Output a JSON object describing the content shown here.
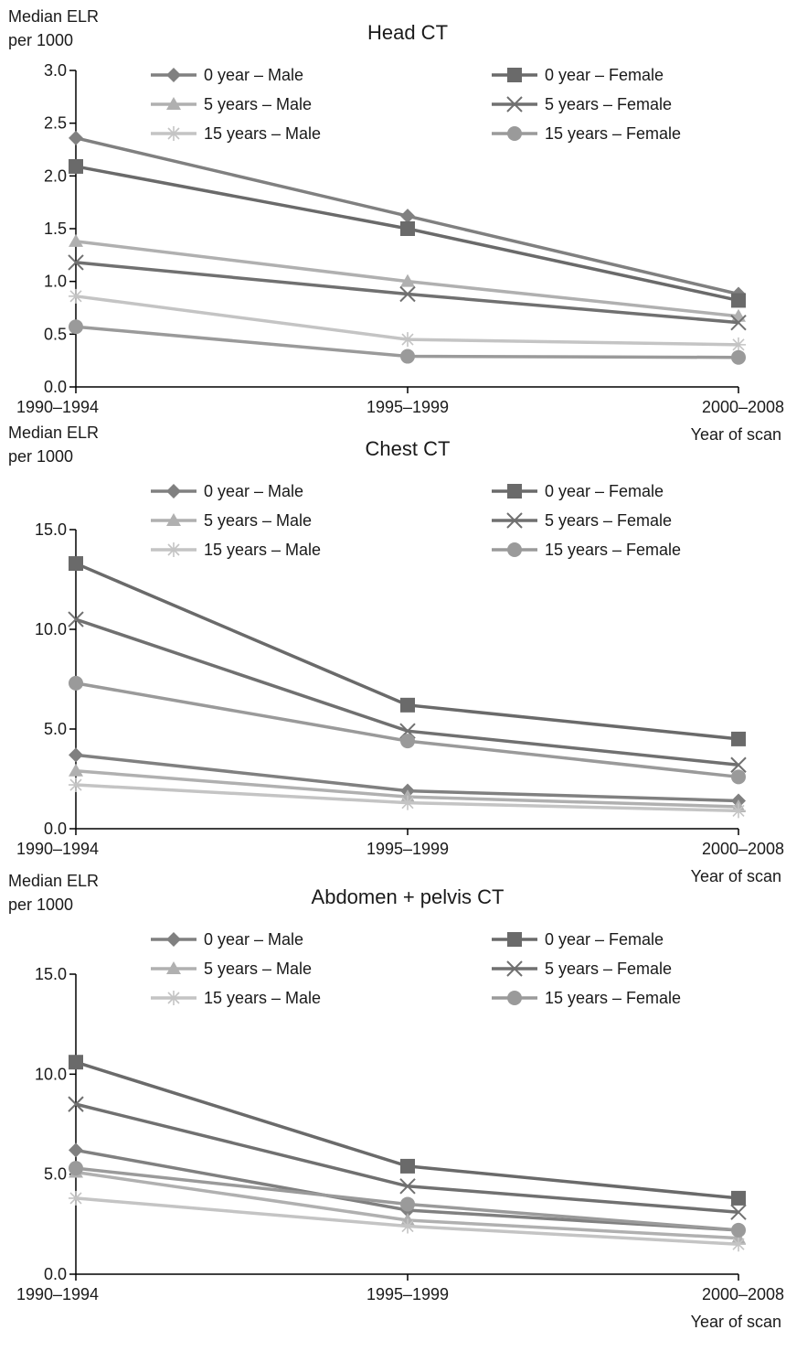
{
  "chart_data": [
    {
      "type": "line",
      "title": "Head CT",
      "ylabel": [
        "Median ELR",
        "per 1000"
      ],
      "xlabel": "Year of scan",
      "categories": [
        "1990–1994",
        "1995–1999",
        "2000–2008"
      ],
      "ylim": [
        0,
        3.0
      ],
      "yticks": [
        "0.0",
        "0.5",
        "1.0",
        "1.5",
        "2.0",
        "2.5",
        "3.0"
      ],
      "legend_position": "top",
      "grid": false,
      "series": [
        {
          "name": "0 year – Male",
          "marker": "diamond",
          "color": "#808080",
          "values": [
            2.36,
            1.62,
            0.88
          ]
        },
        {
          "name": "0 year – Female",
          "marker": "square",
          "color": "#6a6a6a",
          "values": [
            2.09,
            1.5,
            0.82
          ]
        },
        {
          "name": "5 years – Male",
          "marker": "triangle",
          "color": "#b0b0b0",
          "values": [
            1.38,
            1.0,
            0.67
          ]
        },
        {
          "name": "5 years – Female",
          "marker": "x",
          "color": "#707070",
          "values": [
            1.18,
            0.88,
            0.61
          ]
        },
        {
          "name": "15 years – Male",
          "marker": "star",
          "color": "#c4c4c4",
          "values": [
            0.86,
            0.45,
            0.4
          ]
        },
        {
          "name": "15 years – Female",
          "marker": "circle",
          "color": "#9a9a9a",
          "values": [
            0.57,
            0.29,
            0.28
          ]
        }
      ]
    },
    {
      "type": "line",
      "title": "Chest CT",
      "ylabel": [
        "Median ELR",
        "per 1000"
      ],
      "xlabel": "Year of scan",
      "categories": [
        "1990–1994",
        "1995–1999",
        "2000–2008"
      ],
      "ylim": [
        0,
        15.0
      ],
      "yticks": [
        "0.0",
        "5.0",
        "10.0",
        "15.0"
      ],
      "legend_position": "top",
      "grid": false,
      "series": [
        {
          "name": "0 year – Male",
          "marker": "diamond",
          "color": "#808080",
          "values": [
            3.7,
            1.9,
            1.4
          ]
        },
        {
          "name": "0 year – Female",
          "marker": "square",
          "color": "#6a6a6a",
          "values": [
            13.3,
            6.2,
            4.5
          ]
        },
        {
          "name": "5 years – Male",
          "marker": "triangle",
          "color": "#b0b0b0",
          "values": [
            2.9,
            1.6,
            1.1
          ]
        },
        {
          "name": "5 years – Female",
          "marker": "x",
          "color": "#707070",
          "values": [
            10.5,
            4.9,
            3.2
          ]
        },
        {
          "name": "15 years – Male",
          "marker": "star",
          "color": "#c4c4c4",
          "values": [
            2.2,
            1.3,
            0.9
          ]
        },
        {
          "name": "15 years – Female",
          "marker": "circle",
          "color": "#9a9a9a",
          "values": [
            7.3,
            4.4,
            2.6
          ]
        }
      ]
    },
    {
      "type": "line",
      "title": "Abdomen + pelvis CT",
      "ylabel": [
        "Median ELR",
        "per 1000"
      ],
      "xlabel": "Year of scan",
      "categories": [
        "1990–1994",
        "1995–1999",
        "2000–2008"
      ],
      "ylim": [
        0,
        15.0
      ],
      "yticks": [
        "0.0",
        "5.0",
        "10.0",
        "15.0"
      ],
      "legend_position": "top",
      "grid": false,
      "series": [
        {
          "name": "0 year – Male",
          "marker": "diamond",
          "color": "#808080",
          "values": [
            6.2,
            3.2,
            2.2
          ]
        },
        {
          "name": "0 year – Female",
          "marker": "square",
          "color": "#6a6a6a",
          "values": [
            10.6,
            5.4,
            3.8
          ]
        },
        {
          "name": "5 years – Male",
          "marker": "triangle",
          "color": "#b0b0b0",
          "values": [
            5.1,
            2.7,
            1.8
          ]
        },
        {
          "name": "5 years – Female",
          "marker": "x",
          "color": "#707070",
          "values": [
            8.5,
            4.4,
            3.1
          ]
        },
        {
          "name": "15 years – Male",
          "marker": "star",
          "color": "#c4c4c4",
          "values": [
            3.8,
            2.4,
            1.5
          ]
        },
        {
          "name": "15 years – Female",
          "marker": "circle",
          "color": "#9a9a9a",
          "values": [
            5.3,
            3.5,
            2.2
          ]
        }
      ]
    }
  ]
}
